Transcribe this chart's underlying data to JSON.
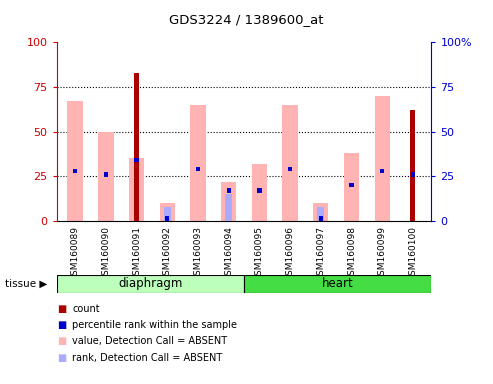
{
  "title": "GDS3224 / 1389600_at",
  "samples": [
    "GSM160089",
    "GSM160090",
    "GSM160091",
    "GSM160092",
    "GSM160093",
    "GSM160094",
    "GSM160095",
    "GSM160096",
    "GSM160097",
    "GSM160098",
    "GSM160099",
    "GSM160100"
  ],
  "red_count": [
    0,
    0,
    83,
    0,
    0,
    0,
    0,
    0,
    0,
    0,
    0,
    62
  ],
  "pink_value": [
    67,
    50,
    35,
    10,
    65,
    22,
    32,
    65,
    10,
    38,
    70,
    0
  ],
  "blue_rank": [
    28,
    26,
    34,
    0,
    29,
    17,
    17,
    29,
    0,
    20,
    28,
    26
  ],
  "lightblue_rank": [
    0,
    0,
    0,
    8,
    0,
    15,
    0,
    0,
    8,
    0,
    0,
    0
  ],
  "diaphragm_n": 6,
  "heart_n": 6,
  "tissue_label": "tissue",
  "diaphragm_label": "diaphragm",
  "heart_label": "heart",
  "ylim": [
    0,
    100
  ],
  "yticks": [
    0,
    25,
    50,
    75,
    100
  ],
  "bar_width": 0.5,
  "red_color": "#AA0000",
  "pink_color": "#FFB3B3",
  "blue_color": "#0000CC",
  "lightblue_color": "#AAAAFF",
  "diaphragm_color": "#BBFFBB",
  "heart_color": "#44DD44",
  "bg_color": "#FFFFFF",
  "gray_bg": "#DDDDDD",
  "left_axis_color": "#CC0000",
  "right_axis_color": "#0000CC",
  "right_ytick_labels": [
    "0",
    "25",
    "50",
    "75",
    "100%"
  ]
}
